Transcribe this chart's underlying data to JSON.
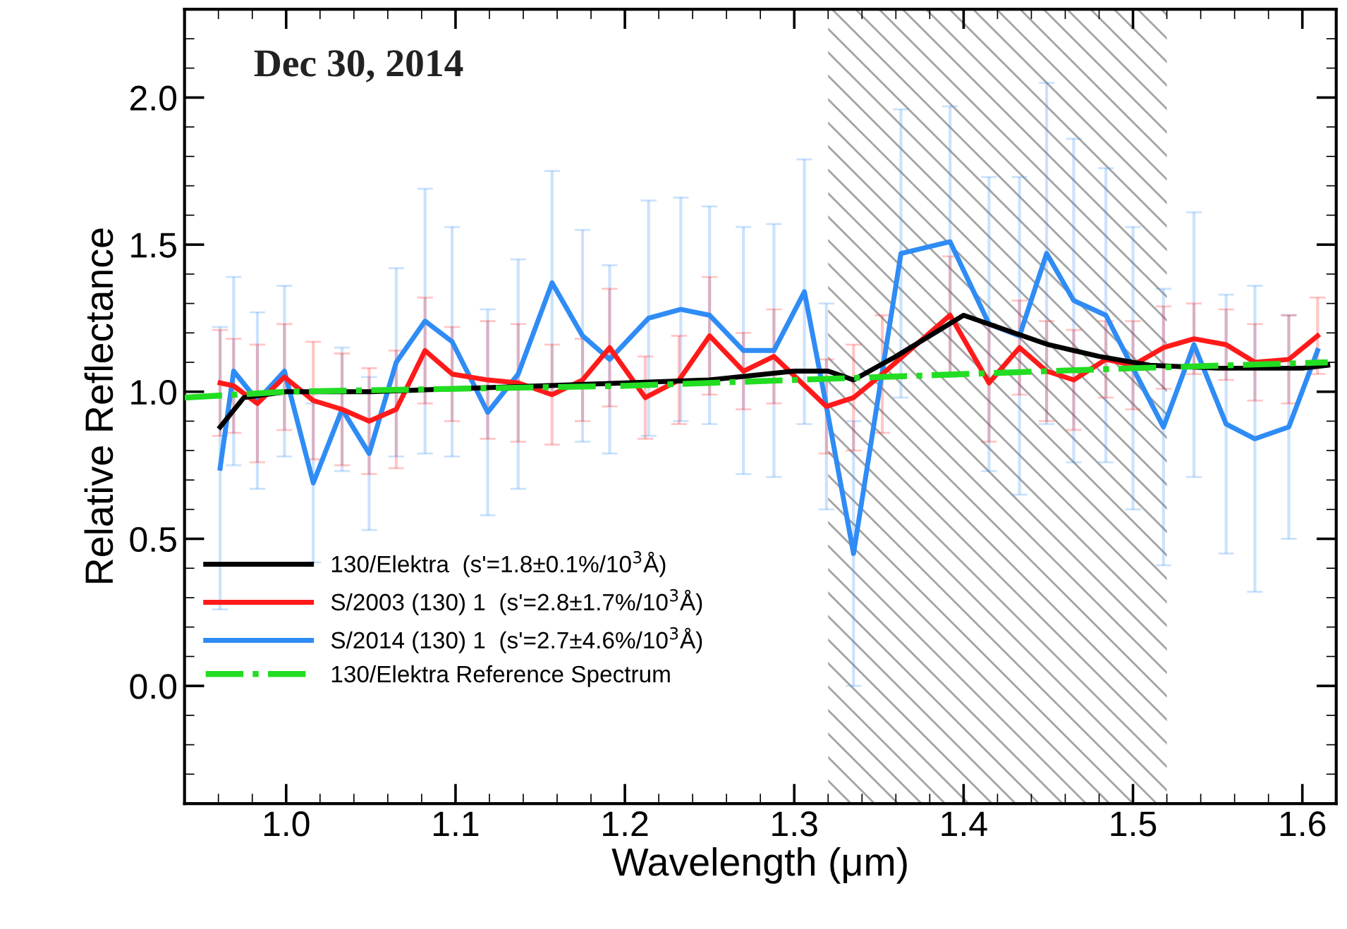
{
  "chart_data": {
    "type": "line",
    "xlabel": "Wavelength (μm)",
    "ylabel": "Relative Reflectance",
    "annotations": [
      "Dec 30, 2014"
    ],
    "xlim": [
      0.94,
      1.62
    ],
    "xticks": [
      {
        "value": 1,
        "label": "1.0"
      },
      1.1,
      1.2,
      1.3,
      1.4,
      1.5,
      1.6
    ],
    "ylim": [
      -0.4,
      2.3
    ],
    "yticks": [
      {
        "value": 0,
        "label": "0.0"
      },
      0.5,
      {
        "value": 1,
        "label": "1.0"
      },
      1.5,
      {
        "value": 2,
        "label": "2.0"
      }
    ],
    "grid": false,
    "legend": "bottom left",
    "marker": "none",
    "bands": [
      {
        "axis": "x",
        "from": 1.32,
        "to": 1.52,
        "color": "#000000"
      }
    ],
    "series": [
      {
        "name": "S/2014 (130) 1  (s'=2.7±4.6%/10$^{3}$Å)",
        "color": "#2f8cf5",
        "x": [
          0.961,
          0.969,
          0.983,
          0.999,
          1.016,
          1.033,
          1.049,
          1.065,
          1.082,
          1.098,
          1.119,
          1.137,
          1.157,
          1.175,
          1.191,
          1.214,
          1.233,
          1.25,
          1.27,
          1.288,
          1.306,
          1.319,
          1.335,
          1.363,
          1.392,
          1.415,
          1.433,
          1.449,
          1.465,
          1.484,
          1.5,
          1.518,
          1.536,
          1.555,
          1.572,
          1.592,
          1.609
        ],
        "values": [
          0.74,
          1.07,
          0.97,
          1.07,
          0.69,
          0.94,
          0.79,
          1.1,
          1.24,
          1.17,
          0.93,
          1.06,
          1.37,
          1.19,
          1.11,
          1.25,
          1.28,
          1.26,
          1.14,
          1.14,
          1.34,
          0.95,
          0.45,
          1.47,
          1.51,
          1.23,
          1.19,
          1.47,
          1.31,
          1.26,
          1.08,
          0.88,
          1.16,
          0.89,
          0.84,
          0.88,
          1.14
        ],
        "errors": [
          0.48,
          0.32,
          0.3,
          0.29,
          0.27,
          0.21,
          0.26,
          0.32,
          0.45,
          0.39,
          0.35,
          0.39,
          0.38,
          0.36,
          0.32,
          0.4,
          0.38,
          0.37,
          0.42,
          0.43,
          0.45,
          0.35,
          0.45,
          0.49,
          0.46,
          0.5,
          0.54,
          0.58,
          0.55,
          0.5,
          0.48,
          0.47,
          0.45,
          0.44,
          0.52,
          0.38,
          null
        ]
      },
      {
        "name": "S/2003 (130) 1  (s'=2.8±1.7%/10$^{3}$Å)",
        "color": "#ff1a1a",
        "x": [
          0.961,
          0.969,
          0.983,
          0.999,
          1.016,
          1.033,
          1.049,
          1.065,
          1.082,
          1.098,
          1.119,
          1.137,
          1.157,
          1.175,
          1.191,
          1.212,
          1.232,
          1.25,
          1.27,
          1.288,
          1.319,
          1.335,
          1.352,
          1.392,
          1.415,
          1.433,
          1.449,
          1.465,
          1.484,
          1.5,
          1.518,
          1.536,
          1.555,
          1.572,
          1.592,
          1.609
        ],
        "values": [
          1.03,
          1.02,
          0.96,
          1.05,
          0.97,
          0.94,
          0.9,
          0.94,
          1.14,
          1.06,
          1.04,
          1.03,
          0.99,
          1.04,
          1.15,
          0.98,
          1.04,
          1.19,
          1.07,
          1.12,
          0.95,
          0.98,
          1.06,
          1.26,
          1.03,
          1.15,
          1.07,
          1.04,
          1.11,
          1.09,
          1.15,
          1.18,
          1.16,
          1.1,
          1.11,
          1.19
        ],
        "errors": [
          0.18,
          0.16,
          0.2,
          0.18,
          0.2,
          0.19,
          0.18,
          0.2,
          0.18,
          0.16,
          0.2,
          0.2,
          0.17,
          0.14,
          0.2,
          0.14,
          0.15,
          0.2,
          0.13,
          0.16,
          0.16,
          0.18,
          0.2,
          0.2,
          0.2,
          0.16,
          0.17,
          0.17,
          0.13,
          0.15,
          0.14,
          0.12,
          0.12,
          0.13,
          0.15,
          0.13
        ]
      },
      {
        "name": "130/Elektra  (s'=1.8±0.1%/10$^{3}$Å)",
        "color": "#000000",
        "x": [
          0.961,
          0.975,
          1.0,
          1.05,
          1.1,
          1.15,
          1.2,
          1.25,
          1.3,
          1.32,
          1.335,
          1.36,
          1.38,
          1.4,
          1.42,
          1.45,
          1.48,
          1.51,
          1.55,
          1.6,
          1.615
        ],
        "values": [
          0.88,
          0.98,
          1.0,
          1.0,
          1.01,
          1.02,
          1.03,
          1.04,
          1.07,
          1.07,
          1.04,
          1.12,
          1.19,
          1.26,
          1.22,
          1.16,
          1.12,
          1.09,
          1.08,
          1.08,
          1.09
        ]
      },
      {
        "name": "130/Elektra Reference Spectrum",
        "color": "#22dd22",
        "line_style": "dashdot",
        "x": [
          0.94,
          1.0,
          1.1,
          1.2,
          1.3,
          1.4,
          1.5,
          1.615
        ],
        "values": [
          0.98,
          1.0,
          1.01,
          1.02,
          1.04,
          1.06,
          1.08,
          1.1
        ]
      }
    ]
  }
}
